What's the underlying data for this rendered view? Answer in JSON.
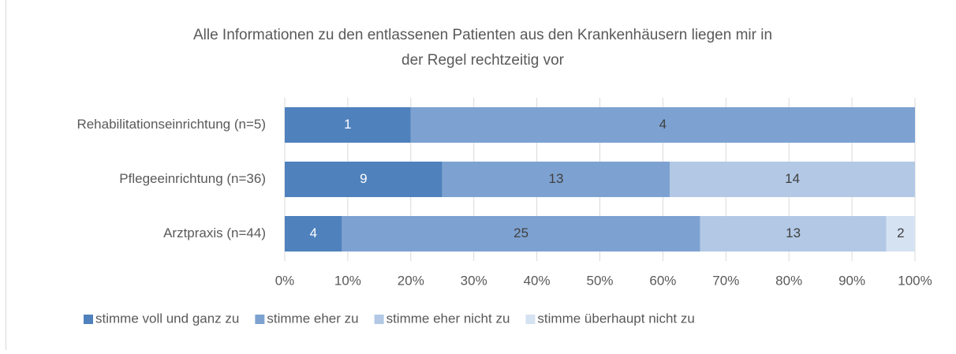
{
  "chart_data": {
    "type": "bar",
    "orientation": "horizontal",
    "stacked": "percent",
    "title": [
      "Alle Informationen zu den entlassenen Patienten aus den Krankenhäusern liegen mir in",
      "der Regel rechtzeitig vor"
    ],
    "categories": [
      "Rehabilitationseinrichtung (n=5)",
      "Pflegeeinrichtung (n=36)",
      "Arztpraxis (n=44)"
    ],
    "series": [
      {
        "name": "stimme voll und ganz zu",
        "color": "#4f81bd",
        "values": [
          1,
          9,
          4
        ]
      },
      {
        "name": "stimme eher zu",
        "color": "#7da2d1",
        "values": [
          4,
          13,
          25
        ]
      },
      {
        "name": "stimme eher nicht zu",
        "color": "#b2c8e5",
        "values": [
          null,
          14,
          13
        ]
      },
      {
        "name": "stimme überhaupt nicht zu",
        "color": "#d5e2f2",
        "values": [
          null,
          null,
          2
        ]
      }
    ],
    "xlim": [
      0,
      100
    ],
    "xticks": [
      {
        "value": 0,
        "label": "0%"
      },
      {
        "value": 10,
        "label": "10%"
      },
      {
        "value": 20,
        "label": "20%"
      },
      {
        "value": 30,
        "label": "30%"
      },
      {
        "value": 40,
        "label": "40%"
      },
      {
        "value": 50,
        "label": "50%"
      },
      {
        "value": 60,
        "label": "60%"
      },
      {
        "value": 70,
        "label": "70%"
      },
      {
        "value": 80,
        "label": "80%"
      },
      {
        "value": 90,
        "label": "90%"
      },
      {
        "value": 100,
        "label": "100%"
      }
    ],
    "grid": true,
    "legend": "bottom"
  }
}
